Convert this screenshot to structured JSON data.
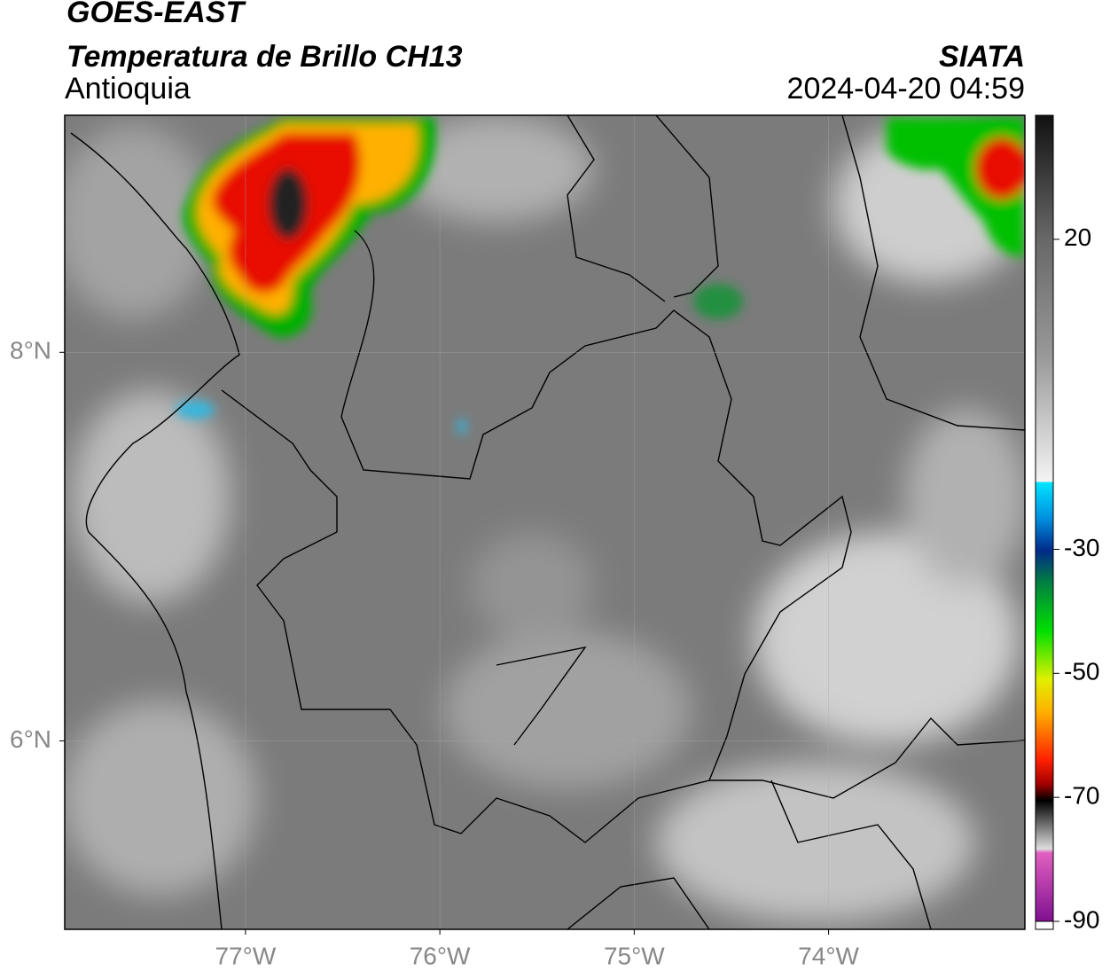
{
  "header": {
    "title": "GOES-EAST",
    "subtitle": "Temperatura de Brillo CH13",
    "region": "Antioquia",
    "agency": "SIATA",
    "datetime": "2024-04-20 04:59"
  },
  "map": {
    "xlim": [
      -77.93,
      -72.99
    ],
    "ylim": [
      5.03,
      9.22
    ],
    "xticks": [
      {
        "value": -77,
        "label": "77°W"
      },
      {
        "value": -76,
        "label": "76°W"
      },
      {
        "value": -75,
        "label": "75°W"
      },
      {
        "value": -74,
        "label": "74°W"
      }
    ],
    "yticks": [
      {
        "value": 8,
        "label": "8°N"
      },
      {
        "value": 6,
        "label": "6°N"
      }
    ]
  },
  "colorbar": {
    "lim": [
      -90,
      40
    ],
    "ticks": [
      20,
      -30,
      -50,
      -70,
      -90
    ]
  }
}
